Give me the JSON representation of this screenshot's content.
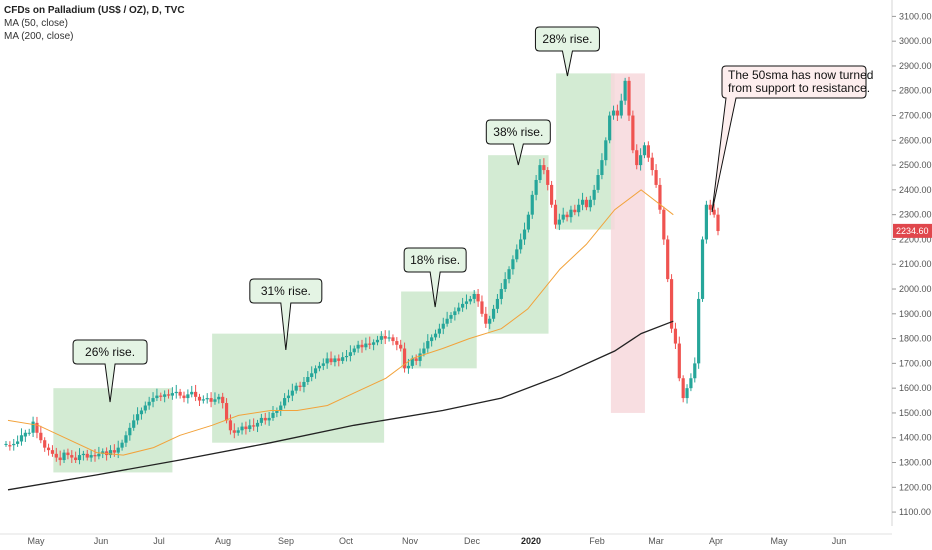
{
  "header": {
    "title": "CFDs on Palladium (US$ / OZ), D, TVC",
    "indicators": [
      "MA (50, close)",
      "MA (200, close)"
    ]
  },
  "price_tag": {
    "value": "2234.60",
    "color": "#e0474c"
  },
  "colors": {
    "up": "#26a69a",
    "down": "#ef5350",
    "rise_box": "#cbe8cb",
    "fall_box": "#f7d8dc",
    "ma50": "#f2a23a",
    "ma200": "#222222",
    "bubble_fill": "#e4f4e4",
    "note_fill": "#fdeeee"
  },
  "chart_data": {
    "type": "candlestick",
    "title": "CFDs on Palladium (US$ / OZ), D, TVC",
    "y_axis": {
      "ticks": [
        1100,
        1200,
        1300,
        1400,
        1500,
        1600,
        1700,
        1800,
        1900,
        2000,
        2100,
        2200,
        2300,
        2400,
        2500,
        2600,
        2700,
        2800,
        2900,
        3000,
        3100
      ],
      "range": [
        1060,
        3150
      ]
    },
    "x_axis": {
      "labels": [
        "May",
        "Jun",
        "Jul",
        "Aug",
        "Sep",
        "Oct",
        "Nov",
        "Dec",
        "2020",
        "Feb",
        "Mar",
        "Apr",
        "May",
        "Jun"
      ],
      "label_bold": "2020"
    },
    "series": [
      {
        "name": "MA (50, close)",
        "points": [
          [
            "2019-04-15",
            1470
          ],
          [
            "2019-05-01",
            1450
          ],
          [
            "2019-05-15",
            1400
          ],
          [
            "2019-06-01",
            1340
          ],
          [
            "2019-06-15",
            1330
          ],
          [
            "2019-07-01",
            1360
          ],
          [
            "2019-07-15",
            1410
          ],
          [
            "2019-08-01",
            1450
          ],
          [
            "2019-08-15",
            1490
          ],
          [
            "2019-09-01",
            1510
          ],
          [
            "2019-09-15",
            1510
          ],
          [
            "2019-10-01",
            1530
          ],
          [
            "2019-10-15",
            1580
          ],
          [
            "2019-11-01",
            1640
          ],
          [
            "2019-11-15",
            1720
          ],
          [
            "2019-12-01",
            1760
          ],
          [
            "2019-12-15",
            1800
          ],
          [
            "2020-01-01",
            1840
          ],
          [
            "2020-01-15",
            1920
          ],
          [
            "2020-02-01",
            2080
          ],
          [
            "2020-02-15",
            2180
          ],
          [
            "2020-03-01",
            2320
          ],
          [
            "2020-03-15",
            2400
          ],
          [
            "2020-04-01",
            2300
          ]
        ]
      },
      {
        "name": "MA (200, close)",
        "points": [
          [
            "2019-04-15",
            1190
          ],
          [
            "2019-06-01",
            1250
          ],
          [
            "2019-07-15",
            1310
          ],
          [
            "2019-09-01",
            1380
          ],
          [
            "2019-10-15",
            1450
          ],
          [
            "2019-12-01",
            1510
          ],
          [
            "2020-01-01",
            1560
          ],
          [
            "2020-02-01",
            1650
          ],
          [
            "2020-03-01",
            1750
          ],
          [
            "2020-03-15",
            1820
          ],
          [
            "2020-04-01",
            1870
          ]
        ]
      }
    ],
    "candles": [
      [
        1375,
        1375
      ],
      [
        1370,
        1365
      ],
      [
        1370,
        1375
      ],
      [
        1375,
        1385
      ],
      [
        1385,
        1410
      ],
      [
        1405,
        1420
      ],
      [
        1420,
        1420
      ],
      [
        1420,
        1465
      ],
      [
        1460,
        1420
      ],
      [
        1420,
        1390
      ],
      [
        1390,
        1360
      ],
      [
        1360,
        1350
      ],
      [
        1350,
        1335
      ],
      [
        1335,
        1320
      ],
      [
        1320,
        1310
      ],
      [
        1310,
        1340
      ],
      [
        1340,
        1330
      ],
      [
        1330,
        1320
      ],
      [
        1320,
        1310
      ],
      [
        1310,
        1330
      ],
      [
        1330,
        1335
      ],
      [
        1335,
        1320
      ],
      [
        1320,
        1330
      ],
      [
        1330,
        1325
      ],
      [
        1325,
        1335
      ],
      [
        1335,
        1345
      ],
      [
        1345,
        1330
      ],
      [
        1330,
        1350
      ],
      [
        1350,
        1340
      ],
      [
        1340,
        1360
      ],
      [
        1360,
        1380
      ],
      [
        1380,
        1410
      ],
      [
        1410,
        1440
      ],
      [
        1440,
        1470
      ],
      [
        1470,
        1495
      ],
      [
        1495,
        1510
      ],
      [
        1510,
        1530
      ],
      [
        1530,
        1545
      ],
      [
        1545,
        1560
      ],
      [
        1560,
        1570
      ],
      [
        1570,
        1565
      ],
      [
        1565,
        1575
      ],
      [
        1575,
        1570
      ],
      [
        1570,
        1580
      ],
      [
        1580,
        1585
      ],
      [
        1585,
        1570
      ],
      [
        1570,
        1560
      ],
      [
        1560,
        1575
      ],
      [
        1575,
        1585
      ],
      [
        1585,
        1565
      ],
      [
        1565,
        1550
      ],
      [
        1550,
        1555
      ],
      [
        1555,
        1560
      ],
      [
        1560,
        1545
      ],
      [
        1545,
        1555
      ],
      [
        1555,
        1565
      ],
      [
        1565,
        1540
      ],
      [
        1540,
        1470
      ],
      [
        1470,
        1430
      ],
      [
        1430,
        1420
      ],
      [
        1420,
        1430
      ],
      [
        1430,
        1445
      ],
      [
        1445,
        1435
      ],
      [
        1435,
        1450
      ],
      [
        1450,
        1445
      ],
      [
        1445,
        1460
      ],
      [
        1460,
        1480
      ],
      [
        1480,
        1470
      ],
      [
        1470,
        1480
      ],
      [
        1480,
        1500
      ],
      [
        1500,
        1510
      ],
      [
        1510,
        1530
      ],
      [
        1530,
        1560
      ],
      [
        1560,
        1570
      ],
      [
        1570,
        1590
      ],
      [
        1590,
        1610
      ],
      [
        1610,
        1605
      ],
      [
        1605,
        1625
      ],
      [
        1625,
        1645
      ],
      [
        1645,
        1660
      ],
      [
        1660,
        1680
      ],
      [
        1680,
        1690
      ],
      [
        1690,
        1700
      ],
      [
        1700,
        1720
      ],
      [
        1720,
        1705
      ],
      [
        1705,
        1720
      ],
      [
        1720,
        1710
      ],
      [
        1710,
        1725
      ],
      [
        1725,
        1730
      ],
      [
        1730,
        1745
      ],
      [
        1745,
        1760
      ],
      [
        1760,
        1775
      ],
      [
        1775,
        1765
      ],
      [
        1765,
        1780
      ],
      [
        1780,
        1775
      ],
      [
        1775,
        1785
      ],
      [
        1785,
        1795
      ],
      [
        1795,
        1810
      ],
      [
        1810,
        1800
      ],
      [
        1800,
        1805
      ],
      [
        1805,
        1790
      ],
      [
        1790,
        1775
      ],
      [
        1775,
        1760
      ],
      [
        1760,
        1680
      ],
      [
        1680,
        1690
      ],
      [
        1690,
        1720
      ],
      [
        1720,
        1710
      ],
      [
        1710,
        1740
      ],
      [
        1740,
        1760
      ],
      [
        1760,
        1790
      ],
      [
        1790,
        1805
      ],
      [
        1805,
        1820
      ],
      [
        1820,
        1840
      ],
      [
        1840,
        1860
      ],
      [
        1860,
        1880
      ],
      [
        1880,
        1895
      ],
      [
        1895,
        1910
      ],
      [
        1910,
        1925
      ],
      [
        1925,
        1940
      ],
      [
        1940,
        1950
      ],
      [
        1950,
        1960
      ],
      [
        1960,
        1980
      ],
      [
        1980,
        1950
      ],
      [
        1950,
        1900
      ],
      [
        1900,
        1860
      ],
      [
        1860,
        1880
      ],
      [
        1880,
        1920
      ],
      [
        1920,
        1960
      ],
      [
        1960,
        2000
      ],
      [
        2000,
        2040
      ],
      [
        2040,
        2080
      ],
      [
        2080,
        2120
      ],
      [
        2120,
        2160
      ],
      [
        2160,
        2200
      ],
      [
        2200,
        2240
      ],
      [
        2240,
        2300
      ],
      [
        2300,
        2380
      ],
      [
        2380,
        2440
      ],
      [
        2440,
        2500
      ],
      [
        2500,
        2480
      ],
      [
        2480,
        2420
      ],
      [
        2420,
        2340
      ],
      [
        2340,
        2260
      ],
      [
        2260,
        2280
      ],
      [
        2280,
        2300
      ],
      [
        2300,
        2290
      ],
      [
        2290,
        2320
      ],
      [
        2320,
        2310
      ],
      [
        2310,
        2340
      ],
      [
        2340,
        2360
      ],
      [
        2360,
        2330
      ],
      [
        2330,
        2360
      ],
      [
        2360,
        2400
      ],
      [
        2400,
        2460
      ],
      [
        2460,
        2520
      ],
      [
        2520,
        2600
      ],
      [
        2600,
        2700
      ],
      [
        2700,
        2720
      ],
      [
        2720,
        2700
      ],
      [
        2700,
        2760
      ],
      [
        2760,
        2840
      ],
      [
        2840,
        2700
      ],
      [
        2700,
        2560
      ],
      [
        2560,
        2500
      ],
      [
        2500,
        2540
      ],
      [
        2540,
        2580
      ],
      [
        2580,
        2530
      ],
      [
        2530,
        2480
      ],
      [
        2480,
        2420
      ],
      [
        2420,
        2320
      ],
      [
        2320,
        2200
      ],
      [
        2200,
        2040
      ],
      [
        2040,
        1840
      ],
      [
        1840,
        1780
      ],
      [
        1780,
        1640
      ],
      [
        1640,
        1560
      ],
      [
        1560,
        1600
      ],
      [
        1600,
        1640
      ],
      [
        1640,
        1700
      ],
      [
        1700,
        1960
      ],
      [
        1960,
        2200
      ],
      [
        2200,
        2340
      ],
      [
        2340,
        2320
      ],
      [
        2320,
        2300
      ],
      [
        2300,
        2234
      ]
    ],
    "x_start": "2019-04-15",
    "boxes": [
      {
        "type": "rise",
        "label": "26% rise.",
        "from": "2019-05-09",
        "to": "2019-07-11",
        "y": [
          1260,
          1600
        ]
      },
      {
        "type": "rise",
        "label": "31% rise.",
        "from": "2019-08-01",
        "to": "2019-10-31",
        "y": [
          1380,
          1820
        ]
      },
      {
        "type": "rise",
        "label": "18% rise.",
        "from": "2019-11-09",
        "to": "2019-12-19",
        "y": [
          1680,
          1990
        ]
      },
      {
        "type": "rise",
        "label": "38% rise.",
        "from": "2019-12-25",
        "to": "2020-01-26",
        "y": [
          1820,
          2540
        ]
      },
      {
        "type": "rise",
        "label": "28% rise.",
        "from": "2020-01-30",
        "to": "2020-03-01",
        "y": [
          2240,
          2870
        ]
      },
      {
        "type": "fall",
        "label": "",
        "from": "2020-02-28",
        "to": "2020-03-17",
        "y": [
          1500,
          2870
        ]
      }
    ],
    "annotations": [
      {
        "text": "The 50sma has now turned\nfrom support to resistance."
      }
    ]
  }
}
